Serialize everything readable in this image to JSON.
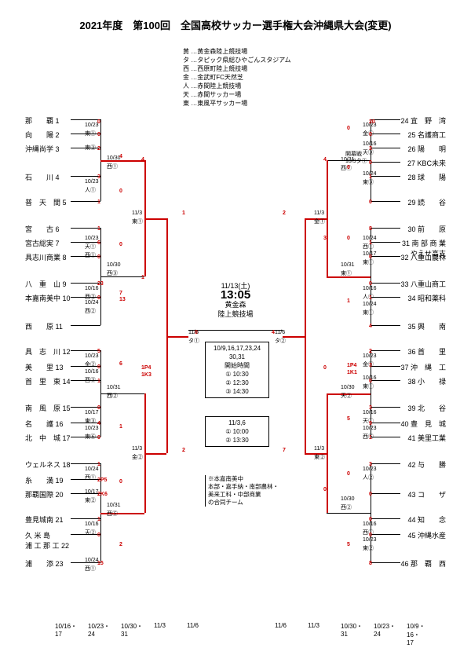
{
  "title": "2021年度　第100回　全国高校サッカー選手権大会沖縄県大会(変更)",
  "legend": [
    "黄 …黄金森陸上競技場",
    "タ …タピック県総ひやごんスタジアム",
    "西 …西原町陸上競技場",
    "金 …金武町FC天然芝",
    "人 …赤間陸上競技場",
    "天 …赤間サッカー場",
    "東 …東風平サッカー場"
  ],
  "left_teams": [
    {
      "s": "1",
      "n": "那　　覇"
    },
    {
      "s": "2",
      "n": "向　　陽"
    },
    {
      "s": "3",
      "n": "沖縄尚学"
    },
    {
      "s": "4",
      "n": "石　　川"
    },
    {
      "s": "5",
      "n": "普　天　間"
    },
    {
      "s": "6",
      "n": "宮　　古"
    },
    {
      "s": "7",
      "n": "宮古総実"
    },
    {
      "s": "8",
      "n": "具志川商業"
    },
    {
      "s": "9",
      "n": "八　重　山"
    },
    {
      "s": "10",
      "n": "本嘉南美中"
    },
    {
      "s": "11",
      "n": "西　　原"
    },
    {
      "s": "12",
      "n": "具　志　川"
    },
    {
      "s": "13",
      "n": "美　　里"
    },
    {
      "s": "14",
      "n": "首　里　東"
    },
    {
      "s": "15",
      "n": "南　風　原"
    },
    {
      "s": "16",
      "n": "名　　護"
    },
    {
      "s": "17",
      "n": "北　中　城"
    },
    {
      "s": "18",
      "n": "ウェルネス"
    },
    {
      "s": "19",
      "n": "糸　　満"
    },
    {
      "s": "20",
      "n": "那覇国際"
    },
    {
      "s": "21",
      "n": "豊見城南"
    },
    {
      "s": "22",
      "n": "久 米 島\\n浦 工 那 工"
    },
    {
      "s": "23",
      "n": "浦　　添"
    }
  ],
  "right_teams": [
    {
      "s": "24",
      "n": "宜　野　湾"
    },
    {
      "s": "25",
      "n": "名護商工"
    },
    {
      "s": "26",
      "n": "陽　　明"
    },
    {
      "s": "27",
      "n": "KBC未来"
    },
    {
      "s": "28",
      "n": "球　　陽"
    },
    {
      "s": "29",
      "n": "読　　谷"
    },
    {
      "s": "30",
      "n": "前　　原"
    },
    {
      "s": "31",
      "n": "南 部 商 業\\nやえせ高支"
    },
    {
      "s": "32",
      "n": "八重山農林"
    },
    {
      "s": "33",
      "n": "八重山商工"
    },
    {
      "s": "34",
      "n": "昭和薬科"
    },
    {
      "s": "35",
      "n": "興　　南"
    },
    {
      "s": "36",
      "n": "首　　里"
    },
    {
      "s": "37",
      "n": "沖　縄　工"
    },
    {
      "s": "38",
      "n": "小　　禄"
    },
    {
      "s": "39",
      "n": "北　　谷"
    },
    {
      "s": "40",
      "n": "豊　見　城"
    },
    {
      "s": "41",
      "n": "美里工業"
    },
    {
      "s": "42",
      "n": "与　　勝"
    },
    {
      "s": "43",
      "n": "コ　　ザ"
    },
    {
      "s": "44",
      "n": "知　　念"
    },
    {
      "s": "45",
      "n": "沖縄水産"
    },
    {
      "s": "46",
      "n": "那　覇　西"
    }
  ],
  "final": {
    "date": "11/13(土)",
    "time": "13:05",
    "venue": "黄金森\\n陸上競技場"
  },
  "notes1": {
    "header": "10/9,16,17,23,24\\n30,31\\n開始時間",
    "lines": [
      "① 10:30",
      "② 12:30",
      "③ 14:30"
    ]
  },
  "notes2": {
    "header": "11/3,6",
    "lines": [
      "① 10:00",
      "② 13:30"
    ]
  },
  "footnote": "※本嘉南美中\\n本部・嘉手納・南部農林・\\n美来工科・中部商業\\nの合同チーム",
  "opening": "開幕戦\\n10/9タ①",
  "axis_left": [
    "10/16・17",
    "10/23・24",
    "10/30・31",
    "11/3",
    "11/6"
  ],
  "axis_right": [
    "11/6",
    "11/3",
    "10/30・31",
    "10/23・24",
    "10/9・16・17"
  ],
  "colors": {
    "win": "#c00000",
    "line": "#000000",
    "bg": "#ffffff"
  }
}
